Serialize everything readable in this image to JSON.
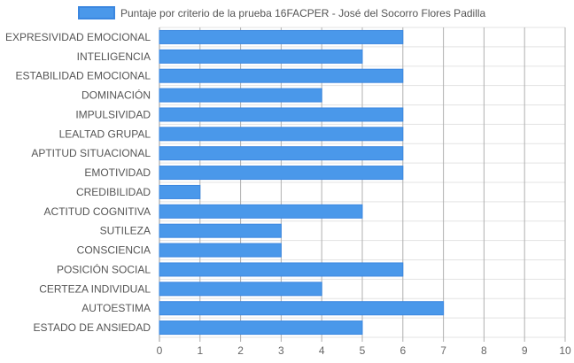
{
  "chart_data": {
    "type": "bar",
    "orientation": "horizontal",
    "title": "",
    "xlabel": "",
    "ylabel": "",
    "categories": [
      "EXPRESIVIDAD EMOCIONAL",
      "INTELIGENCIA",
      "ESTABILIDAD EMOCIONAL",
      "DOMINACIÓN",
      "IMPULSIVIDAD",
      "LEALTAD GRUPAL",
      "APTITUD SITUACIONAL",
      "EMOTIVIDAD",
      "CREDIBILIDAD",
      "ACTITUD COGNITIVA",
      "SUTILEZA",
      "CONSCIENCIA",
      "POSICIÓN SOCIAL",
      "CERTEZA INDIVIDUAL",
      "AUTOESTIMA",
      "ESTADO DE ANSIEDAD"
    ],
    "series": [
      {
        "name": "Puntaje por criterio de la prueba 16FACPER - José del Socorro Flores Padilla",
        "color": "#4a98ea",
        "border_color": "#3b87e0",
        "values": [
          6,
          5,
          6,
          4,
          6,
          6,
          6,
          6,
          1,
          5,
          3,
          3,
          6,
          4,
          7,
          5
        ]
      }
    ],
    "xlim": [
      0,
      10
    ],
    "x_ticks": [
      "0",
      "1",
      "2",
      "3",
      "4",
      "5",
      "6",
      "7",
      "8",
      "9",
      "10"
    ],
    "grid": true,
    "legend_position": "top"
  }
}
